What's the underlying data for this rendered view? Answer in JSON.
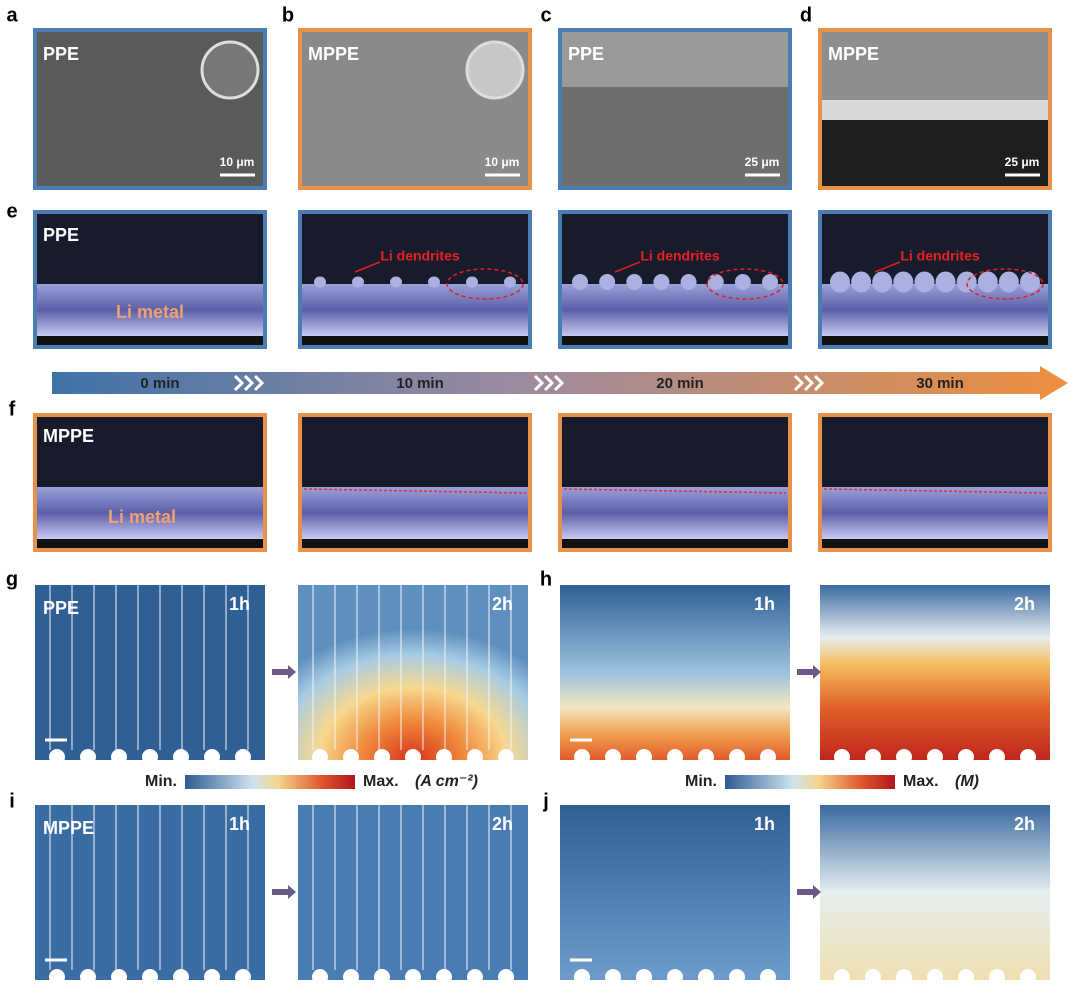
{
  "panel_letters": [
    "a",
    "b",
    "c",
    "d",
    "e",
    "f",
    "g",
    "h",
    "i",
    "j"
  ],
  "sem_panels": [
    {
      "label": "PPE",
      "scale": "10 μm"
    },
    {
      "label": "MPPE",
      "scale": "10 μm"
    },
    {
      "label": "PPE",
      "scale": "25 μm"
    },
    {
      "label": "MPPE",
      "scale": "25 μm"
    }
  ],
  "panel_e": {
    "label": "PPE",
    "metal": "Li metal",
    "dendrites": [
      "Li dendrites",
      "Li dendrites",
      "Li dendrites"
    ]
  },
  "timeline": [
    "0 min",
    "10 min",
    "20 min",
    "30 min"
  ],
  "panel_f": {
    "label": "MPPE",
    "metal": "Li metal"
  },
  "simulations": {
    "g": {
      "label": "PPE",
      "times": [
        "1h",
        "2h"
      ]
    },
    "h": {
      "times": [
        "1h",
        "2h"
      ]
    },
    "i": {
      "label": "MPPE",
      "times": [
        "1h",
        "2h"
      ]
    },
    "j": {
      "times": [
        "1h",
        "2h"
      ]
    }
  },
  "colorbars": [
    {
      "min": "Min.",
      "max": "Max.",
      "unit": "(A cm⁻²)"
    },
    {
      "min": "Min.",
      "max": "Max.",
      "unit": "(M)"
    }
  ]
}
